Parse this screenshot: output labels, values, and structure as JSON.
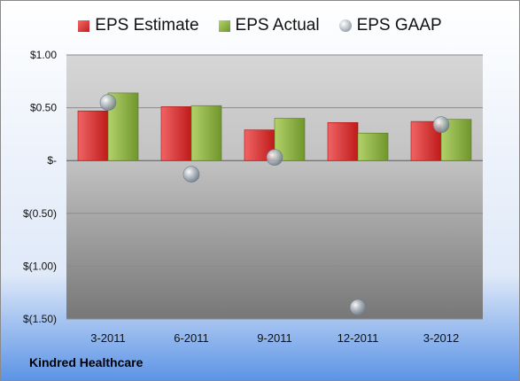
{
  "chart_data": {
    "type": "bar",
    "categories": [
      "3-2011",
      "6-2011",
      "9-2011",
      "12-2011",
      "3-2012"
    ],
    "series": [
      {
        "name": "EPS Estimate",
        "values": [
          0.47,
          0.51,
          0.29,
          0.36,
          0.37
        ],
        "color": "#d42828"
      },
      {
        "name": "EPS Actual",
        "values": [
          0.64,
          0.52,
          0.4,
          0.26,
          0.39
        ],
        "color": "#8db043"
      },
      {
        "name": "EPS GAAP",
        "values": [
          0.55,
          -0.13,
          0.03,
          -1.39,
          0.34
        ],
        "color": "#9aa4b0",
        "marker": "circle"
      }
    ],
    "yticks": [
      {
        "value": 1.0,
        "label": "$1.00"
      },
      {
        "value": 0.5,
        "label": "$0.50"
      },
      {
        "value": 0,
        "label": "$-"
      },
      {
        "value": -0.5,
        "label": "$(0.50)"
      },
      {
        "value": -1.0,
        "label": "$(1.00)"
      },
      {
        "value": -1.5,
        "label": "$(1.50)"
      }
    ],
    "ylim": [
      -1.5,
      1.0
    ],
    "grid": true,
    "legend": "top-center"
  },
  "company": "Kindred Healthcare"
}
